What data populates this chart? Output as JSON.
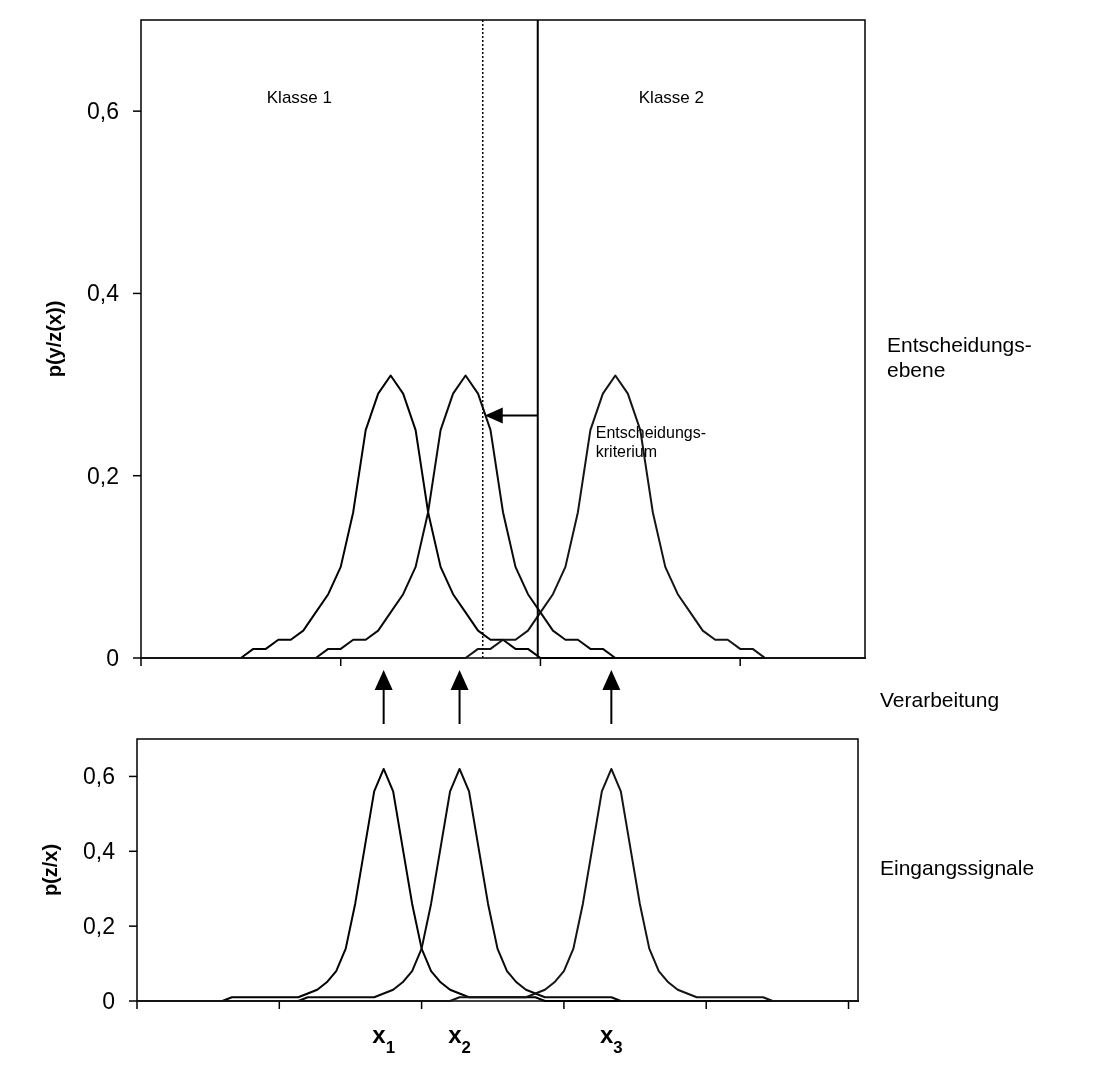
{
  "chart_data": [
    {
      "type": "line",
      "ylabel": "p(y/z(x))",
      "ylim": [
        0,
        0.7
      ],
      "categories": [
        null,
        null,
        null,
        null,
        null,
        null,
        null,
        null,
        null,
        null,
        null,
        null,
        null,
        null,
        null,
        null,
        null,
        null,
        null,
        null,
        null,
        null,
        null,
        null,
        null,
        null,
        null,
        null,
        null,
        null,
        null,
        null,
        null,
        null,
        null,
        null,
        null,
        null,
        null,
        null,
        null,
        null,
        null,
        null,
        null,
        null,
        null,
        null,
        null,
        null,
        null,
        null,
        null,
        null,
        null,
        null,
        null,
        null,
        null
      ],
      "yticks": [
        {
          "value": 0,
          "label": "0"
        },
        {
          "value": 0.2,
          "label": "0,2"
        },
        {
          "value": 0.4,
          "label": "0,4"
        },
        {
          "value": 0.6,
          "label": "0,6"
        }
      ],
      "tick_labels": "y",
      "grid": false,
      "marker": "none",
      "series": [
        {
          "color": "#000000",
          "values": [
            0,
            0,
            0,
            0,
            0,
            0,
            0,
            0,
            0,
            0.01,
            0.01,
            0.02,
            0.02,
            0.03,
            0.05,
            0.07,
            0.1,
            0.16,
            0.25,
            0.29,
            0.31,
            0.29,
            0.25,
            0.16,
            0.1,
            0.07,
            0.05,
            0.03,
            0.02,
            0.02,
            0.01,
            0.01,
            0,
            0,
            0,
            0,
            0,
            0,
            0,
            0,
            0,
            0,
            0,
            0,
            0,
            0,
            0,
            0,
            0,
            0,
            0,
            0,
            0,
            0,
            0,
            0,
            0,
            0,
            0
          ]
        },
        {
          "color": "#0a0a0a",
          "values": [
            0,
            0,
            0,
            0,
            0,
            0,
            0,
            0,
            0,
            0,
            0,
            0,
            0,
            0,
            0,
            0.01,
            0.01,
            0.02,
            0.02,
            0.03,
            0.05,
            0.07,
            0.1,
            0.16,
            0.25,
            0.29,
            0.31,
            0.29,
            0.25,
            0.16,
            0.1,
            0.07,
            0.05,
            0.03,
            0.02,
            0.02,
            0.01,
            0.01,
            0,
            0,
            0,
            0,
            0,
            0,
            0,
            0,
            0,
            0,
            0,
            0,
            0,
            0,
            0,
            0,
            0,
            0,
            0,
            0,
            0
          ]
        },
        {
          "color": "#141414",
          "values": [
            0,
            0,
            0,
            0,
            0,
            0,
            0,
            0,
            0,
            0,
            0,
            0,
            0,
            0,
            0,
            0,
            0,
            0,
            0,
            0,
            0,
            0,
            0,
            0,
            0,
            0,
            0,
            0.01,
            0.01,
            0.02,
            0.02,
            0.03,
            0.05,
            0.07,
            0.1,
            0.16,
            0.25,
            0.29,
            0.31,
            0.29,
            0.25,
            0.16,
            0.1,
            0.07,
            0.05,
            0.03,
            0.02,
            0.02,
            0.01,
            0.01,
            0,
            0,
            0,
            0,
            0,
            0,
            0,
            0,
            0
          ]
        }
      ],
      "annotations": [
        "Klasse 1",
        "Klasse 2",
        "Entscheidungs-\nkriterium",
        "Entscheidungs-\nebene"
      ]
    },
    {
      "type": "line",
      "ylabel": "p(z/x)",
      "ylim": [
        0,
        0.7
      ],
      "categories": [
        null,
        null,
        null,
        null,
        null,
        null,
        null,
        null,
        null,
        null,
        null,
        null,
        null,
        null,
        null,
        null,
        null,
        null,
        null,
        null,
        null,
        null,
        null,
        null,
        null,
        null,
        "x$_{1}$",
        null,
        null,
        null,
        null,
        null,
        null,
        null,
        "x$_{2}$",
        null,
        null,
        null,
        null,
        null,
        null,
        null,
        null,
        null,
        null,
        null,
        null,
        null,
        null,
        null,
        "x$_{3}$",
        null,
        null,
        null,
        null,
        null,
        null,
        null,
        null,
        null,
        null,
        null,
        null,
        null,
        null,
        null,
        null,
        null,
        null,
        null,
        null,
        null,
        null,
        null,
        null,
        null,
        null
      ],
      "yticks": [
        {
          "value": 0,
          "label": "0"
        },
        {
          "value": 0.2,
          "label": "0,2"
        },
        {
          "value": 0.4,
          "label": "0,4"
        },
        {
          "value": 0.6,
          "label": "0,6"
        }
      ],
      "grid": false,
      "marker": "none",
      "series": [
        {
          "color": "#000000",
          "values": [
            0,
            0,
            0,
            0,
            0,
            0,
            0,
            0,
            0,
            0,
            0.01,
            0.01,
            0.01,
            0.01,
            0.01,
            0.01,
            0.01,
            0.01,
            0.02,
            0.03,
            0.05,
            0.08,
            0.14,
            0.26,
            0.41,
            0.56,
            0.62,
            0.56,
            0.41,
            0.26,
            0.14,
            0.08,
            0.05,
            0.03,
            0.02,
            0.01,
            0.01,
            0.01,
            0.01,
            0.01,
            0.01,
            0.01,
            0.01,
            0,
            0,
            0,
            0,
            0,
            0,
            0,
            0,
            0,
            0,
            0,
            0,
            0,
            0,
            0,
            0,
            0,
            0,
            0,
            0,
            0,
            0,
            0,
            0,
            0,
            0,
            0,
            0,
            0,
            0,
            0,
            0,
            0,
            0
          ]
        },
        {
          "color": "#0a0a0a",
          "values": [
            0,
            0,
            0,
            0,
            0,
            0,
            0,
            0,
            0,
            0,
            0,
            0,
            0,
            0,
            0,
            0,
            0,
            0,
            0.01,
            0.01,
            0.01,
            0.01,
            0.01,
            0.01,
            0.01,
            0.01,
            0.02,
            0.03,
            0.05,
            0.08,
            0.14,
            0.26,
            0.41,
            0.56,
            0.62,
            0.56,
            0.41,
            0.26,
            0.14,
            0.08,
            0.05,
            0.03,
            0.02,
            0.01,
            0.01,
            0.01,
            0.01,
            0.01,
            0.01,
            0.01,
            0.01,
            0,
            0,
            0,
            0,
            0,
            0,
            0,
            0,
            0,
            0,
            0,
            0,
            0,
            0,
            0,
            0,
            0,
            0,
            0,
            0,
            0,
            0,
            0,
            0,
            0,
            0
          ]
        },
        {
          "color": "#141414",
          "values": [
            0,
            0,
            0,
            0,
            0,
            0,
            0,
            0,
            0,
            0,
            0,
            0,
            0,
            0,
            0,
            0,
            0,
            0,
            0,
            0,
            0,
            0,
            0,
            0,
            0,
            0,
            0,
            0,
            0,
            0,
            0,
            0,
            0,
            0,
            0.01,
            0.01,
            0.01,
            0.01,
            0.01,
            0.01,
            0.01,
            0.01,
            0.02,
            0.03,
            0.05,
            0.08,
            0.14,
            0.26,
            0.41,
            0.56,
            0.62,
            0.56,
            0.41,
            0.26,
            0.14,
            0.08,
            0.05,
            0.03,
            0.02,
            0.01,
            0.01,
            0.01,
            0.01,
            0.01,
            0.01,
            0.01,
            0.01,
            0,
            0,
            0,
            0,
            0,
            0,
            0,
            0,
            0,
            0
          ]
        }
      ],
      "annotations": [
        "Verarbeitung",
        "Eingangssignale"
      ]
    }
  ]
}
